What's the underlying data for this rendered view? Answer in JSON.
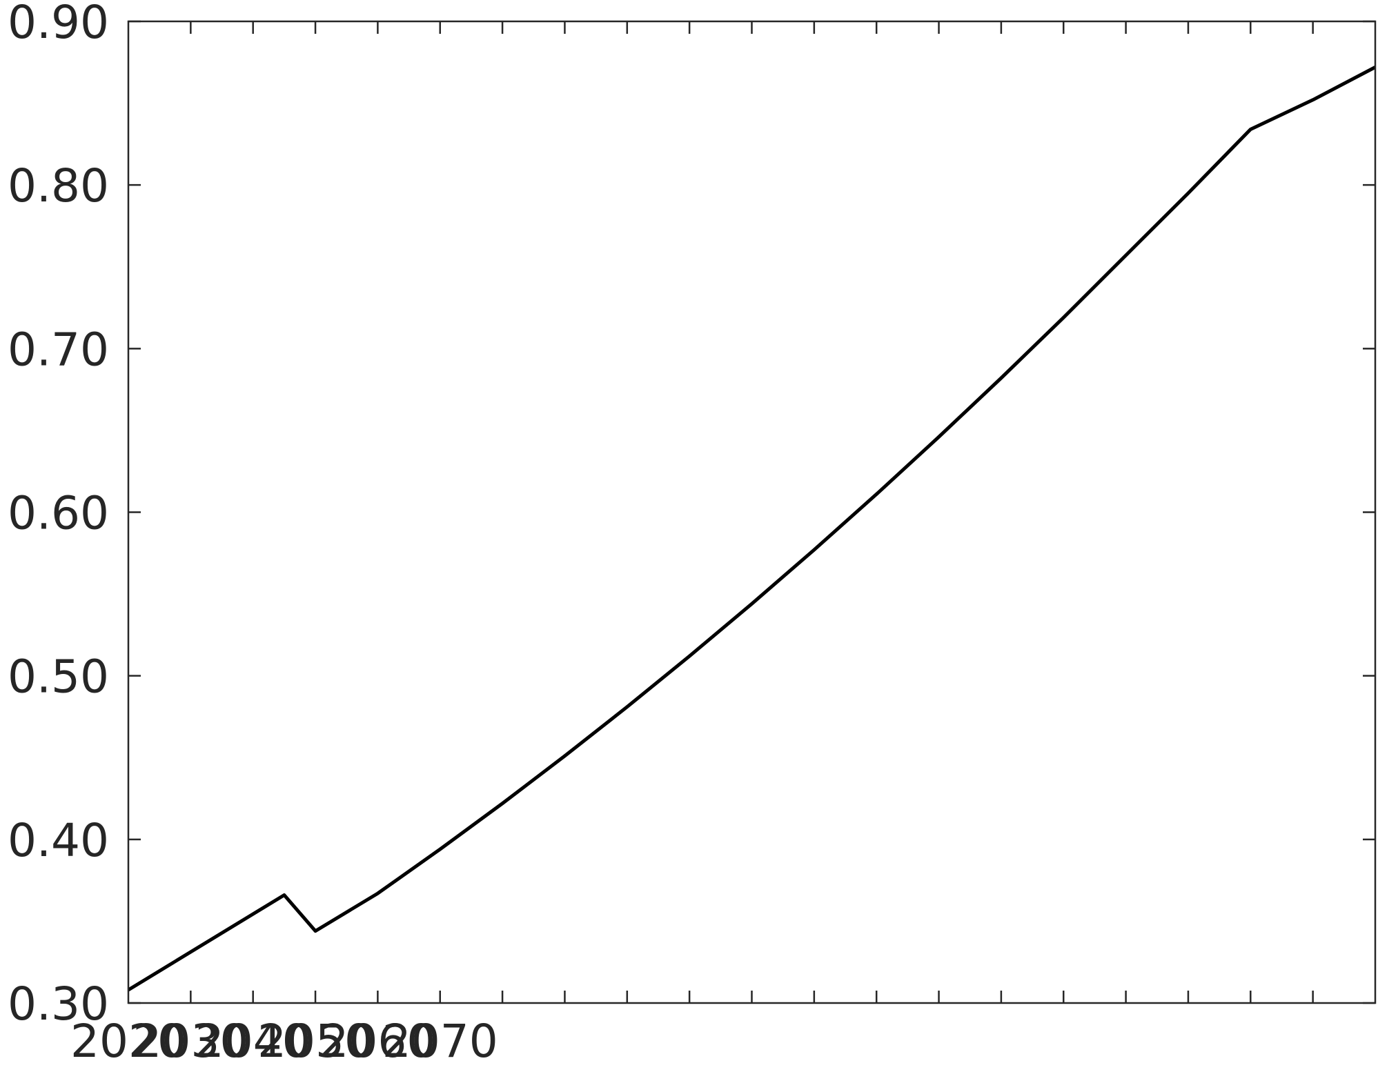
{
  "chart_data": {
    "type": "line",
    "title": "",
    "xlabel": "",
    "ylabel": "",
    "xlim": [
      2020,
      2220
    ],
    "ylim": [
      0.3,
      0.9
    ],
    "x_tick_labels": [
      "2020",
      "2030",
      "2040",
      "2050",
      "2060",
      "2070"
    ],
    "y_tick_labels": [
      "0.30",
      "0.40",
      "0.50",
      "0.60",
      "0.70",
      "0.80",
      "0.90"
    ],
    "grid": false,
    "legend": "none",
    "colors": {
      "line": "#000000",
      "axes": "#262626",
      "text": "#262626"
    },
    "series": [
      {
        "x": [
          2020,
          2045,
          2050,
          2060,
          2070,
          2080,
          2090,
          2100,
          2110,
          2120,
          2130,
          2140,
          2150,
          2160,
          2170,
          2180,
          2190,
          2200,
          2210,
          2220
        ],
        "values": [
          0.308,
          0.366,
          0.344,
          0.367,
          0.394,
          0.422,
          0.451,
          0.481,
          0.512,
          0.544,
          0.577,
          0.611,
          0.646,
          0.682,
          0.719,
          0.757,
          0.795,
          0.834,
          0.852,
          0.872
        ]
      }
    ]
  }
}
